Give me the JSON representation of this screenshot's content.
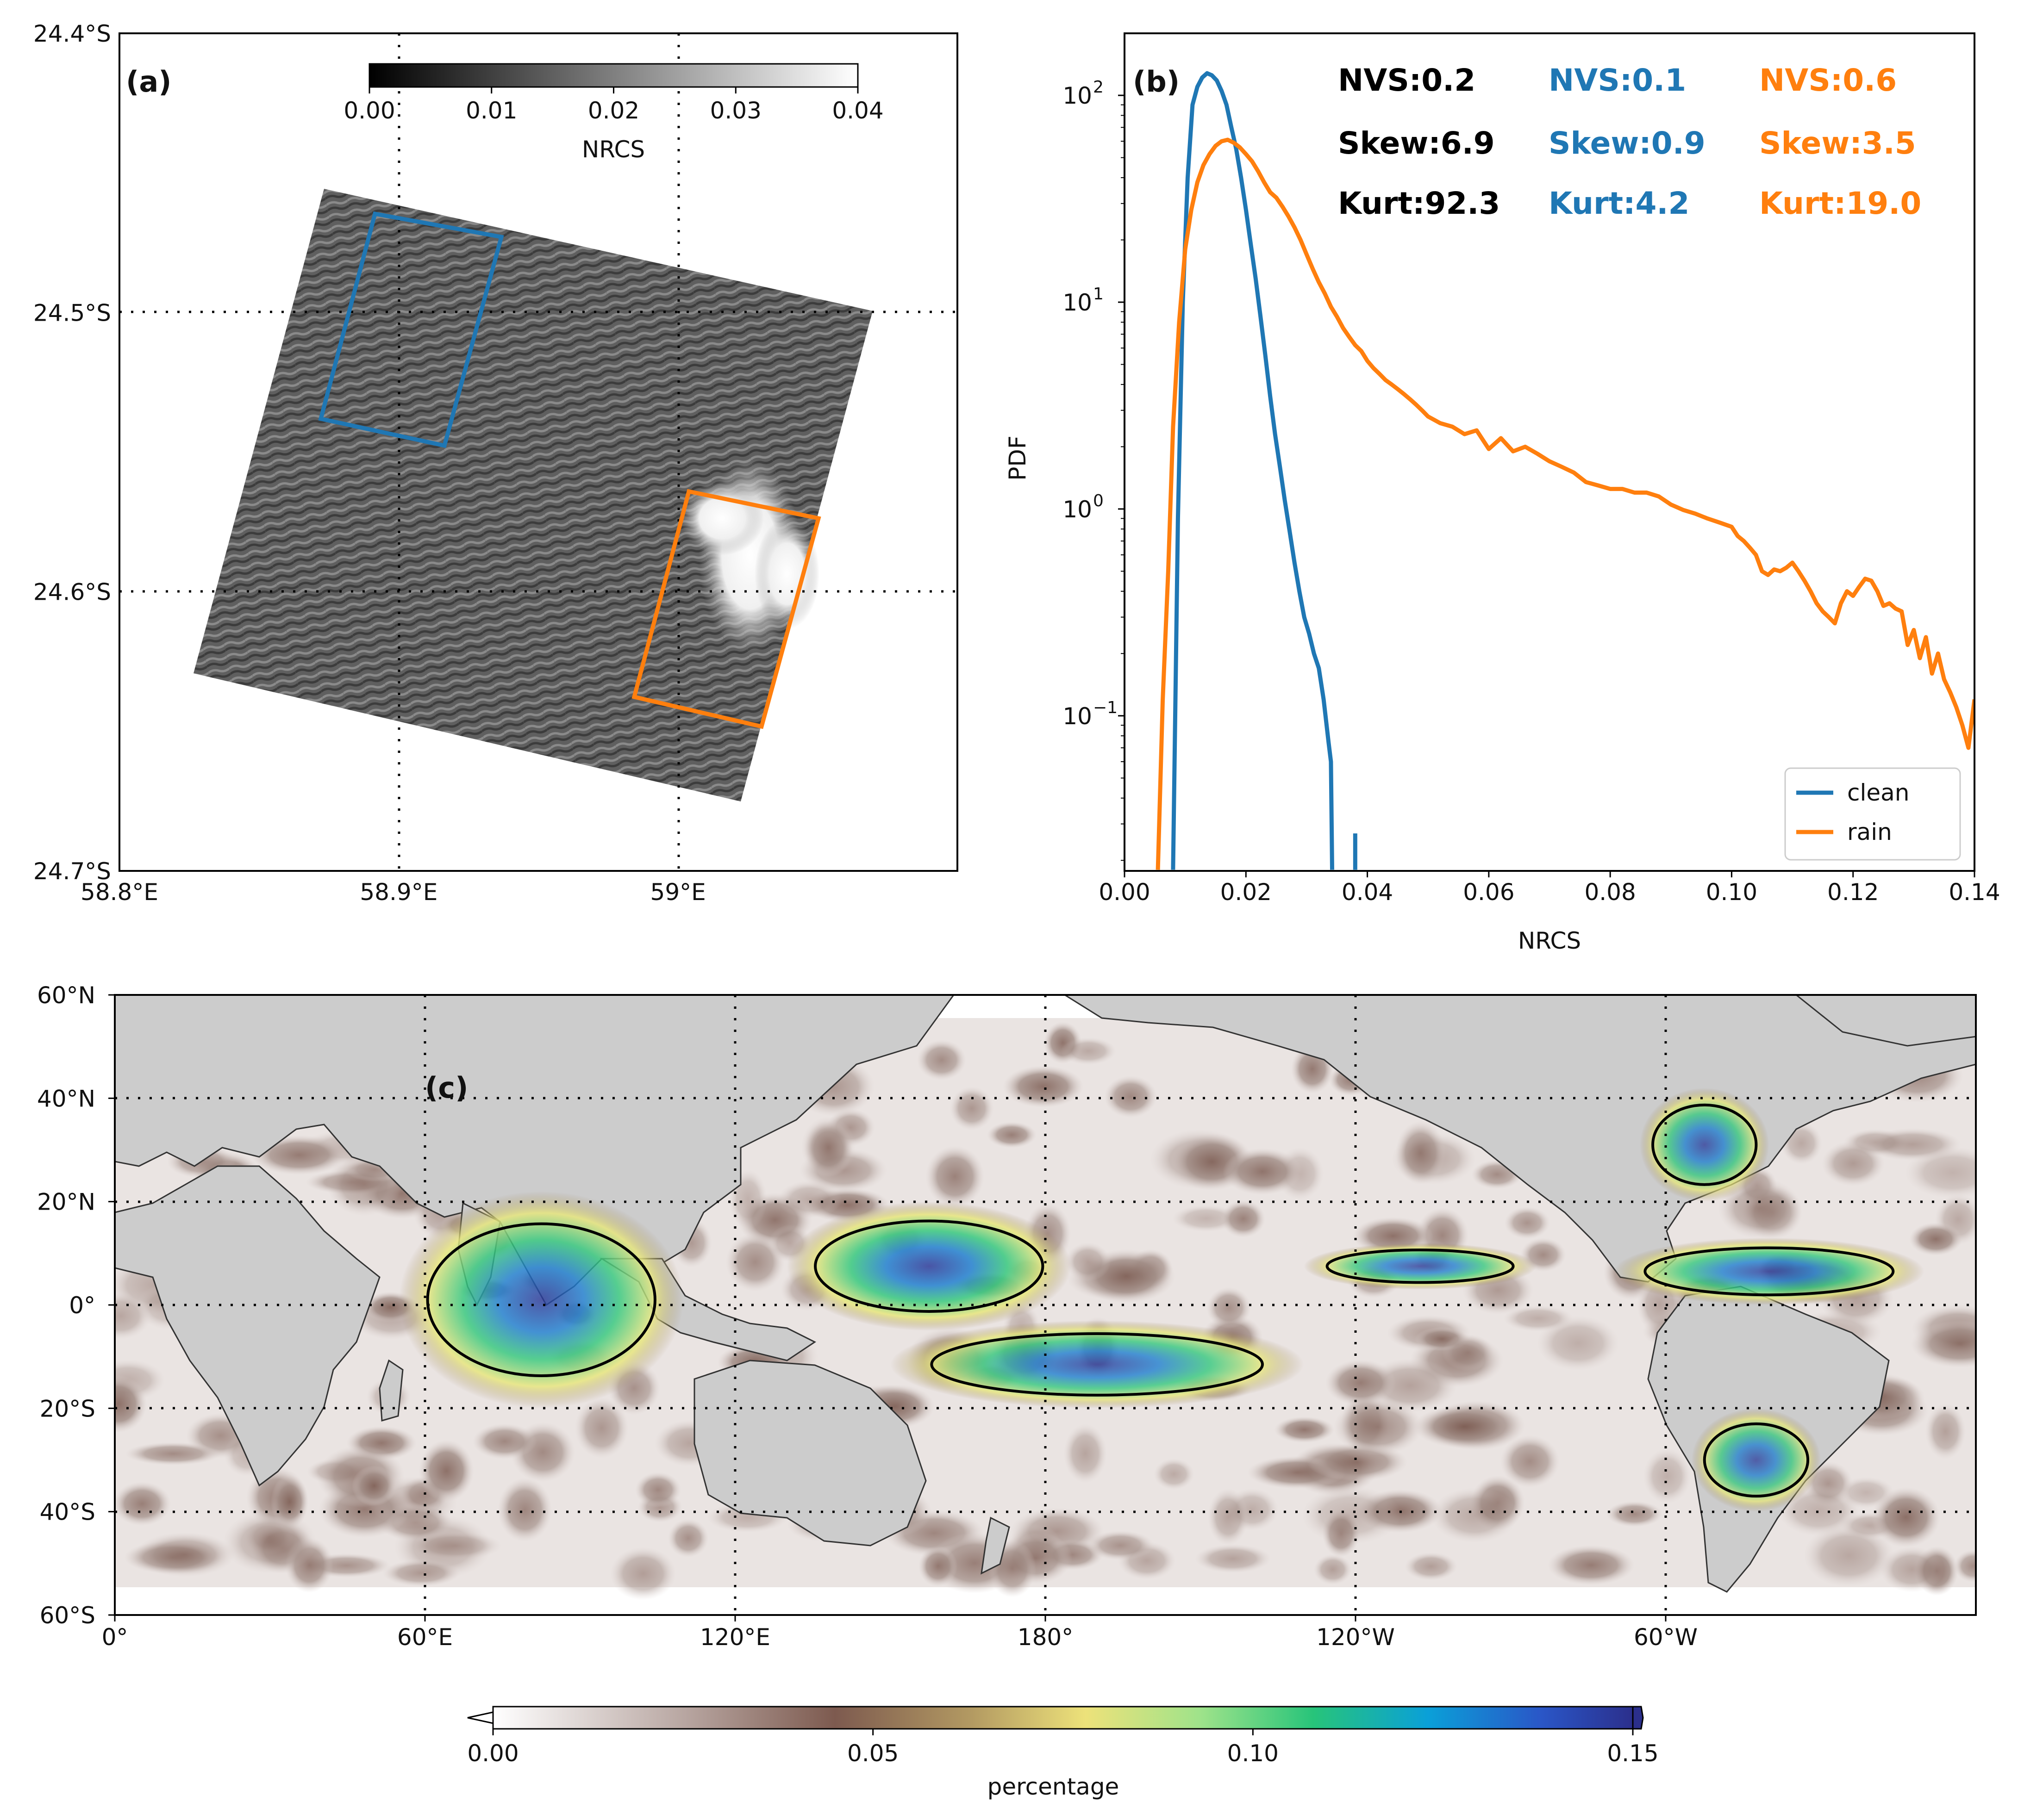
{
  "chart_data": [
    {
      "panel": "(a)",
      "type": "heatmap",
      "title": "",
      "x_ticks": [
        "58.8°E",
        "58.9°E",
        "59°E"
      ],
      "y_ticks": [
        "24.4°S",
        "24.5°S",
        "24.6°S",
        "24.7°S"
      ],
      "xlim": [
        58.8,
        59.1
      ],
      "ylim": [
        -24.7,
        -24.4
      ],
      "colorbar": {
        "label": "NRCS",
        "range": [
          0.0,
          0.04
        ],
        "ticks": [
          "0.00",
          "0.01",
          "0.02",
          "0.03",
          "0.04"
        ],
        "colormap": "gray"
      },
      "regions": [
        {
          "name": "clean",
          "color": "#1f77b4"
        },
        {
          "name": "rain",
          "color": "#ff7f0e"
        }
      ]
    },
    {
      "panel": "(b)",
      "type": "line",
      "xlabel": "NRCS",
      "ylabel": "PDF",
      "xlim": [
        0.0,
        0.14
      ],
      "ylim_log10": [
        -1.75,
        2.3
      ],
      "x_ticks": [
        "0.00",
        "0.02",
        "0.04",
        "0.06",
        "0.08",
        "0.10",
        "0.12",
        "0.14"
      ],
      "y_ticks": [
        {
          "base": "10",
          "exp": "2",
          "log10": 2
        },
        {
          "base": "10",
          "exp": "1",
          "log10": 1
        },
        {
          "base": "10",
          "exp": "0",
          "log10": 0
        },
        {
          "base": "10",
          "exp": "−1",
          "log10": -1
        }
      ],
      "legend": {
        "position": "lower-right",
        "entries": [
          "clean",
          "rain"
        ]
      },
      "stats": [
        {
          "color": "#000000",
          "nvs": "NVS:0.2",
          "skew": "Skew:6.9",
          "kurt": "Kurt:92.3"
        },
        {
          "color": "#1f77b4",
          "nvs": "NVS:0.1",
          "skew": "Skew:0.9",
          "kurt": "Kurt:4.2"
        },
        {
          "color": "#ff7f0e",
          "nvs": "NVS:0.6",
          "skew": "Skew:3.5",
          "kurt": "Kurt:19.0"
        }
      ],
      "series": [
        {
          "name": "clean",
          "color": "#1f77b4",
          "x": [
            0.008,
            0.0088,
            0.0096,
            0.0104,
            0.0112,
            0.012,
            0.0128,
            0.0136,
            0.0144,
            0.0152,
            0.016,
            0.0168,
            0.0176,
            0.0184,
            0.0192,
            0.02,
            0.0208,
            0.0216,
            0.0224,
            0.0232,
            0.024,
            0.0248,
            0.0256,
            0.0264,
            0.0272,
            0.028,
            0.0288,
            0.0296,
            0.0304,
            0.0312,
            0.032,
            0.0328,
            0.0336,
            0.034,
            0.0342
          ],
          "y": [
            0.018,
            0.9,
            10,
            40,
            90,
            110,
            122,
            128,
            125,
            118,
            105,
            90,
            70,
            55,
            40,
            28,
            19,
            13,
            8.5,
            5.5,
            3.5,
            2.3,
            1.6,
            1.1,
            0.78,
            0.55,
            0.4,
            0.3,
            0.25,
            0.2,
            0.17,
            0.12,
            0.075,
            0.06,
            0.018
          ],
          "extra_segment": {
            "x": [
              0.038,
              0.038
            ],
            "y": [
              0.018,
              0.027
            ]
          }
        },
        {
          "name": "rain",
          "color": "#ff7f0e",
          "x": [
            0.0055,
            0.0063,
            0.0072,
            0.008,
            0.009,
            0.01,
            0.011,
            0.012,
            0.013,
            0.014,
            0.015,
            0.016,
            0.017,
            0.018,
            0.019,
            0.02,
            0.021,
            0.022,
            0.023,
            0.024,
            0.025,
            0.026,
            0.027,
            0.028,
            0.029,
            0.03,
            0.031,
            0.032,
            0.033,
            0.034,
            0.035,
            0.036,
            0.037,
            0.038,
            0.039,
            0.04,
            0.041,
            0.042,
            0.043,
            0.044,
            0.045,
            0.046,
            0.047,
            0.048,
            0.049,
            0.05,
            0.052,
            0.054,
            0.056,
            0.058,
            0.06,
            0.062,
            0.064,
            0.066,
            0.068,
            0.07,
            0.072,
            0.074,
            0.076,
            0.078,
            0.08,
            0.082,
            0.084,
            0.086,
            0.088,
            0.09,
            0.092,
            0.094,
            0.096,
            0.098,
            0.1,
            0.101,
            0.102,
            0.103,
            0.104,
            0.105,
            0.106,
            0.107,
            0.108,
            0.109,
            0.11,
            0.111,
            0.112,
            0.113,
            0.114,
            0.115,
            0.116,
            0.117,
            0.118,
            0.119,
            0.12,
            0.121,
            0.122,
            0.123,
            0.124,
            0.125,
            0.126,
            0.127,
            0.128,
            0.129,
            0.13,
            0.131,
            0.132,
            0.133,
            0.134,
            0.135,
            0.136,
            0.137,
            0.138,
            0.139,
            0.14
          ],
          "y": [
            0.018,
            0.12,
            0.5,
            2.5,
            8,
            18,
            28,
            38,
            46,
            52,
            57,
            60,
            61,
            59,
            56,
            52,
            48,
            43,
            38,
            34,
            32,
            29,
            26,
            23,
            20,
            17,
            14.5,
            12.5,
            11,
            9.5,
            8.5,
            7.5,
            6.8,
            6.2,
            5.8,
            5.2,
            4.8,
            4.5,
            4.2,
            4.0,
            3.8,
            3.6,
            3.4,
            3.2,
            3.0,
            2.8,
            2.6,
            2.5,
            2.3,
            2.4,
            1.95,
            2.2,
            1.9,
            2.0,
            1.85,
            1.7,
            1.6,
            1.5,
            1.35,
            1.3,
            1.25,
            1.25,
            1.2,
            1.2,
            1.15,
            1.05,
            0.99,
            0.95,
            0.9,
            0.86,
            0.82,
            0.74,
            0.7,
            0.65,
            0.6,
            0.5,
            0.48,
            0.51,
            0.5,
            0.52,
            0.55,
            0.5,
            0.45,
            0.4,
            0.35,
            0.32,
            0.3,
            0.28,
            0.35,
            0.4,
            0.38,
            0.42,
            0.46,
            0.45,
            0.4,
            0.34,
            0.35,
            0.33,
            0.32,
            0.22,
            0.26,
            0.19,
            0.24,
            0.16,
            0.2,
            0.15,
            0.13,
            0.11,
            0.09,
            0.07,
            0.12
          ]
        }
      ]
    },
    {
      "panel": "(c)",
      "type": "heatmap",
      "title": "",
      "x_ticks": [
        "0°",
        "60°E",
        "120°E",
        "180°",
        "120°W",
        "60°W"
      ],
      "y_ticks": [
        "60°N",
        "40°N",
        "20°N",
        "0°",
        "20°S",
        "40°S",
        "60°S"
      ],
      "xlim": [
        0,
        360
      ],
      "ylim": [
        -60,
        60
      ],
      "colorbar": {
        "label": "percentage",
        "range": [
          0.0,
          0.15
        ],
        "ticks": [
          "0.00",
          "0.05",
          "0.10",
          "0.15"
        ],
        "colormap": "terrain_r"
      },
      "rain_bands": [
        {
          "lon": [
            55,
            110
          ],
          "lat": [
            -20,
            22
          ],
          "level": 0.11
        },
        {
          "lon": [
            130,
            185
          ],
          "lat": [
            -5,
            20
          ],
          "level": 0.12
        },
        {
          "lon": [
            150,
            230
          ],
          "lat": [
            -20,
            -3
          ],
          "level": 0.1
        },
        {
          "lon": [
            230,
            275
          ],
          "lat": [
            3,
            12
          ],
          "level": 0.09
        },
        {
          "lon": [
            290,
            350
          ],
          "lat": [
            0,
            13
          ],
          "level": 0.1
        },
        {
          "lon": [
            295,
            320
          ],
          "lat": [
            20,
            42
          ],
          "level": 0.09
        },
        {
          "lon": [
            305,
            330
          ],
          "lat": [
            -40,
            -20
          ],
          "level": 0.08
        }
      ]
    }
  ]
}
